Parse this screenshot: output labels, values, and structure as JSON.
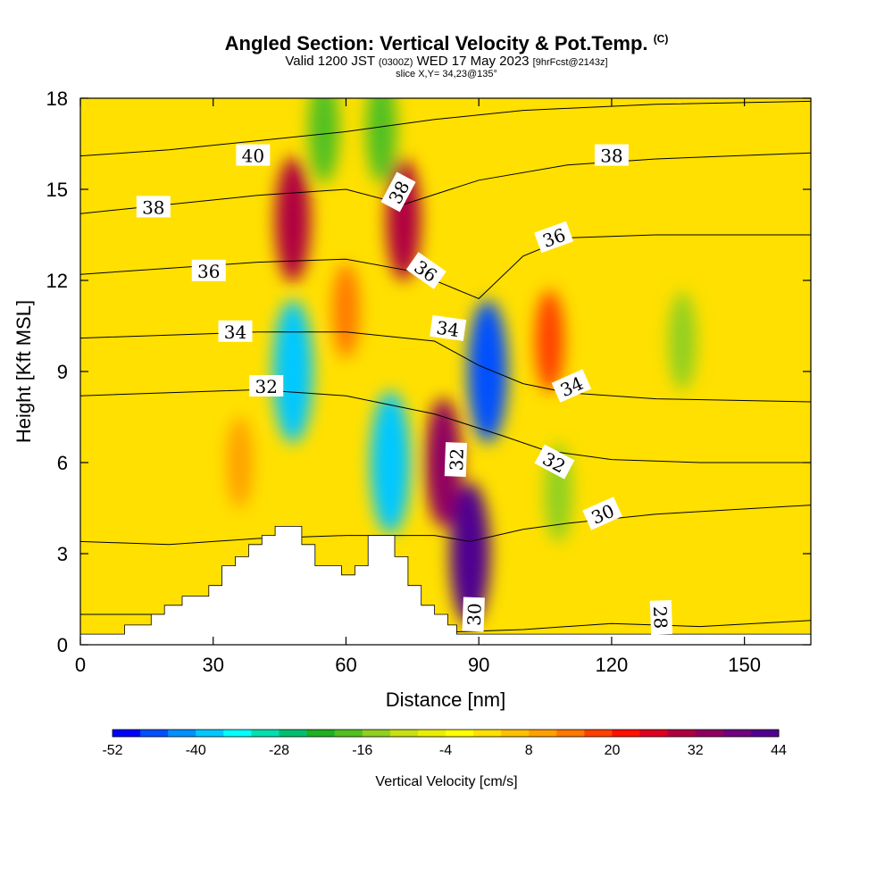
{
  "header": {
    "title": "Angled Section: Vertical Velocity & Pot.Temp.",
    "title_unit": "(C)",
    "subtitle_valid": "Valid 1200 JST",
    "subtitle_utc": "(0300Z)",
    "subtitle_date": "WED 17 May 2023",
    "subtitle_fcst": "[9hrFcst@2143z]",
    "slice": "slice X,Y= 34,23@135°"
  },
  "chart_data": {
    "type": "heatmap",
    "xlabel": "Distance [nm]",
    "ylabel": "Height [Kft MSL]",
    "xlim": [
      0,
      165
    ],
    "ylim": [
      0,
      18
    ],
    "x_ticks": [
      0,
      30,
      60,
      90,
      120,
      150
    ],
    "y_ticks": [
      0,
      3,
      6,
      9,
      12,
      15,
      18
    ],
    "grid": false,
    "colorbar": {
      "title": "Vertical Velocity [cm/s]",
      "levels": [
        -52,
        -48,
        -44,
        -40,
        -36,
        -32,
        -28,
        -24,
        -20,
        -16,
        -12,
        -8,
        -4,
        0,
        4,
        8,
        12,
        16,
        20,
        24,
        28,
        32,
        36,
        40,
        44
      ],
      "tick_labels": [
        "-52",
        "-40",
        "-28",
        "-16",
        "-4",
        "8",
        "20",
        "32",
        "44"
      ],
      "tick_values": [
        -52,
        -40,
        -28,
        -16,
        -4,
        8,
        20,
        32,
        44
      ],
      "colors": [
        "#0000ff",
        "#0050ff",
        "#0090ff",
        "#00c8ff",
        "#00ffff",
        "#00e0b0",
        "#00c070",
        "#20b020",
        "#50c020",
        "#90d020",
        "#c8e010",
        "#e8f000",
        "#ffff00",
        "#ffe000",
        "#ffc000",
        "#ffa000",
        "#ff7800",
        "#ff4000",
        "#ff1000",
        "#e00020",
        "#b00040",
        "#900060",
        "#700080",
        "#500090"
      ]
    },
    "velocity_features": [
      {
        "type": "updraft",
        "x": 48,
        "y": 14,
        "value": 30
      },
      {
        "type": "updraft",
        "x": 73,
        "y": 14,
        "value": 28
      },
      {
        "type": "updraft",
        "x": 82,
        "y": 6,
        "value": 32
      },
      {
        "type": "updraft",
        "x": 88,
        "y": 3,
        "value": 40
      },
      {
        "type": "updraft",
        "x": 106,
        "y": 10,
        "value": 16
      },
      {
        "type": "updraft",
        "x": 60,
        "y": 11,
        "value": 12
      },
      {
        "type": "updraft",
        "x": 36,
        "y": 6,
        "value": 10
      },
      {
        "type": "downdraft",
        "x": 48,
        "y": 9,
        "value": -40
      },
      {
        "type": "downdraft",
        "x": 70,
        "y": 6,
        "value": -40
      },
      {
        "type": "downdraft",
        "x": 92,
        "y": 9,
        "value": -48
      },
      {
        "type": "downdraft",
        "x": 55,
        "y": 17,
        "value": -20
      },
      {
        "type": "downdraft",
        "x": 68,
        "y": 17,
        "value": -20
      },
      {
        "type": "downdraft",
        "x": 136,
        "y": 10,
        "value": -14
      },
      {
        "type": "downdraft",
        "x": 108,
        "y": 5,
        "value": -14
      }
    ],
    "terrain": {
      "x": [
        0,
        10,
        10,
        16,
        16,
        19,
        19,
        23,
        23,
        26,
        26,
        29,
        29,
        32,
        32,
        35,
        35,
        38,
        38,
        41,
        41,
        44,
        44,
        50,
        50,
        53,
        53,
        56,
        56,
        59,
        59,
        62,
        62,
        65,
        65,
        71,
        71,
        74,
        74,
        77,
        77,
        80,
        80,
        83,
        83,
        85,
        85,
        88,
        88,
        165
      ],
      "y": [
        0.35,
        0.35,
        0.65,
        0.65,
        1.0,
        1.0,
        1.3,
        1.3,
        1.6,
        1.6,
        1.6,
        1.6,
        1.95,
        1.95,
        2.6,
        2.6,
        2.9,
        2.9,
        3.3,
        3.3,
        3.6,
        3.6,
        3.9,
        3.9,
        3.3,
        3.3,
        2.6,
        2.6,
        2.6,
        2.6,
        2.3,
        2.3,
        2.6,
        2.6,
        3.6,
        3.6,
        2.9,
        2.9,
        1.95,
        1.95,
        1.3,
        1.3,
        1.0,
        1.0,
        0.65,
        0.65,
        0.35,
        0.35,
        0.35,
        0.35
      ]
    },
    "theta_contours": [
      {
        "label": "28",
        "x": [
          0,
          20,
          40,
          60,
          80,
          100,
          120,
          140,
          165
        ],
        "y": [
          1.0,
          1.0,
          1.0,
          0.5,
          0.4,
          0.5,
          0.7,
          0.6,
          0.8
        ]
      },
      {
        "label": "30",
        "x": [
          0,
          20,
          40,
          60,
          80,
          88,
          100,
          110,
          130,
          165
        ],
        "y": [
          3.4,
          3.3,
          3.5,
          3.6,
          3.6,
          3.4,
          3.8,
          4.0,
          4.3,
          4.6
        ]
      },
      {
        "label": "32",
        "x": [
          0,
          20,
          40,
          60,
          80,
          95,
          105,
          120,
          140,
          165
        ],
        "y": [
          8.2,
          8.3,
          8.4,
          8.2,
          7.6,
          6.9,
          6.4,
          6.1,
          6.0,
          6.0
        ]
      },
      {
        "label": "34",
        "x": [
          0,
          20,
          40,
          60,
          80,
          90,
          100,
          110,
          130,
          165
        ],
        "y": [
          10.1,
          10.2,
          10.3,
          10.3,
          10.0,
          9.2,
          8.6,
          8.3,
          8.1,
          8.0
        ]
      },
      {
        "label": "36",
        "x": [
          0,
          20,
          40,
          60,
          75,
          90,
          100,
          110,
          130,
          165
        ],
        "y": [
          12.2,
          12.4,
          12.6,
          12.7,
          12.3,
          11.4,
          12.8,
          13.4,
          13.5,
          13.5
        ]
      },
      {
        "label": "38",
        "x": [
          0,
          20,
          40,
          60,
          73,
          90,
          110,
          130,
          165
        ],
        "y": [
          14.2,
          14.5,
          14.8,
          15.0,
          14.5,
          15.3,
          15.8,
          16.0,
          16.2
        ]
      },
      {
        "label": "40",
        "x": [
          0,
          20,
          40,
          60,
          80,
          100,
          130,
          165
        ],
        "y": [
          16.1,
          16.3,
          16.6,
          16.9,
          17.3,
          17.6,
          17.8,
          17.9
        ]
      }
    ],
    "contour_labels": [
      {
        "text": "40",
        "x": 39,
        "y": 16.1,
        "angle": 0
      },
      {
        "text": "38",
        "x": 16.5,
        "y": 14.4,
        "angle": 0
      },
      {
        "text": "38",
        "x": 72,
        "y": 14.9,
        "angle": -62
      },
      {
        "text": "38",
        "x": 120,
        "y": 16.1,
        "angle": 0
      },
      {
        "text": "36",
        "x": 29,
        "y": 12.3,
        "angle": 0
      },
      {
        "text": "36",
        "x": 78,
        "y": 12.3,
        "angle": 35
      },
      {
        "text": "36",
        "x": 107,
        "y": 13.4,
        "angle": -20
      },
      {
        "text": "34",
        "x": 35,
        "y": 10.3,
        "angle": 0
      },
      {
        "text": "34",
        "x": 83,
        "y": 10.4,
        "angle": 8
      },
      {
        "text": "34",
        "x": 111,
        "y": 8.5,
        "angle": -24
      },
      {
        "text": "32",
        "x": 42,
        "y": 8.5,
        "angle": 0
      },
      {
        "text": "32",
        "x": 85,
        "y": 6.1,
        "angle": -88
      },
      {
        "text": "32",
        "x": 107,
        "y": 6.0,
        "angle": 28
      },
      {
        "text": "30",
        "x": 89,
        "y": 1.0,
        "angle": -88
      },
      {
        "text": "30",
        "x": 118,
        "y": 4.3,
        "angle": -24
      },
      {
        "text": "28",
        "x": 131,
        "y": 0.9,
        "angle": 88
      }
    ]
  }
}
